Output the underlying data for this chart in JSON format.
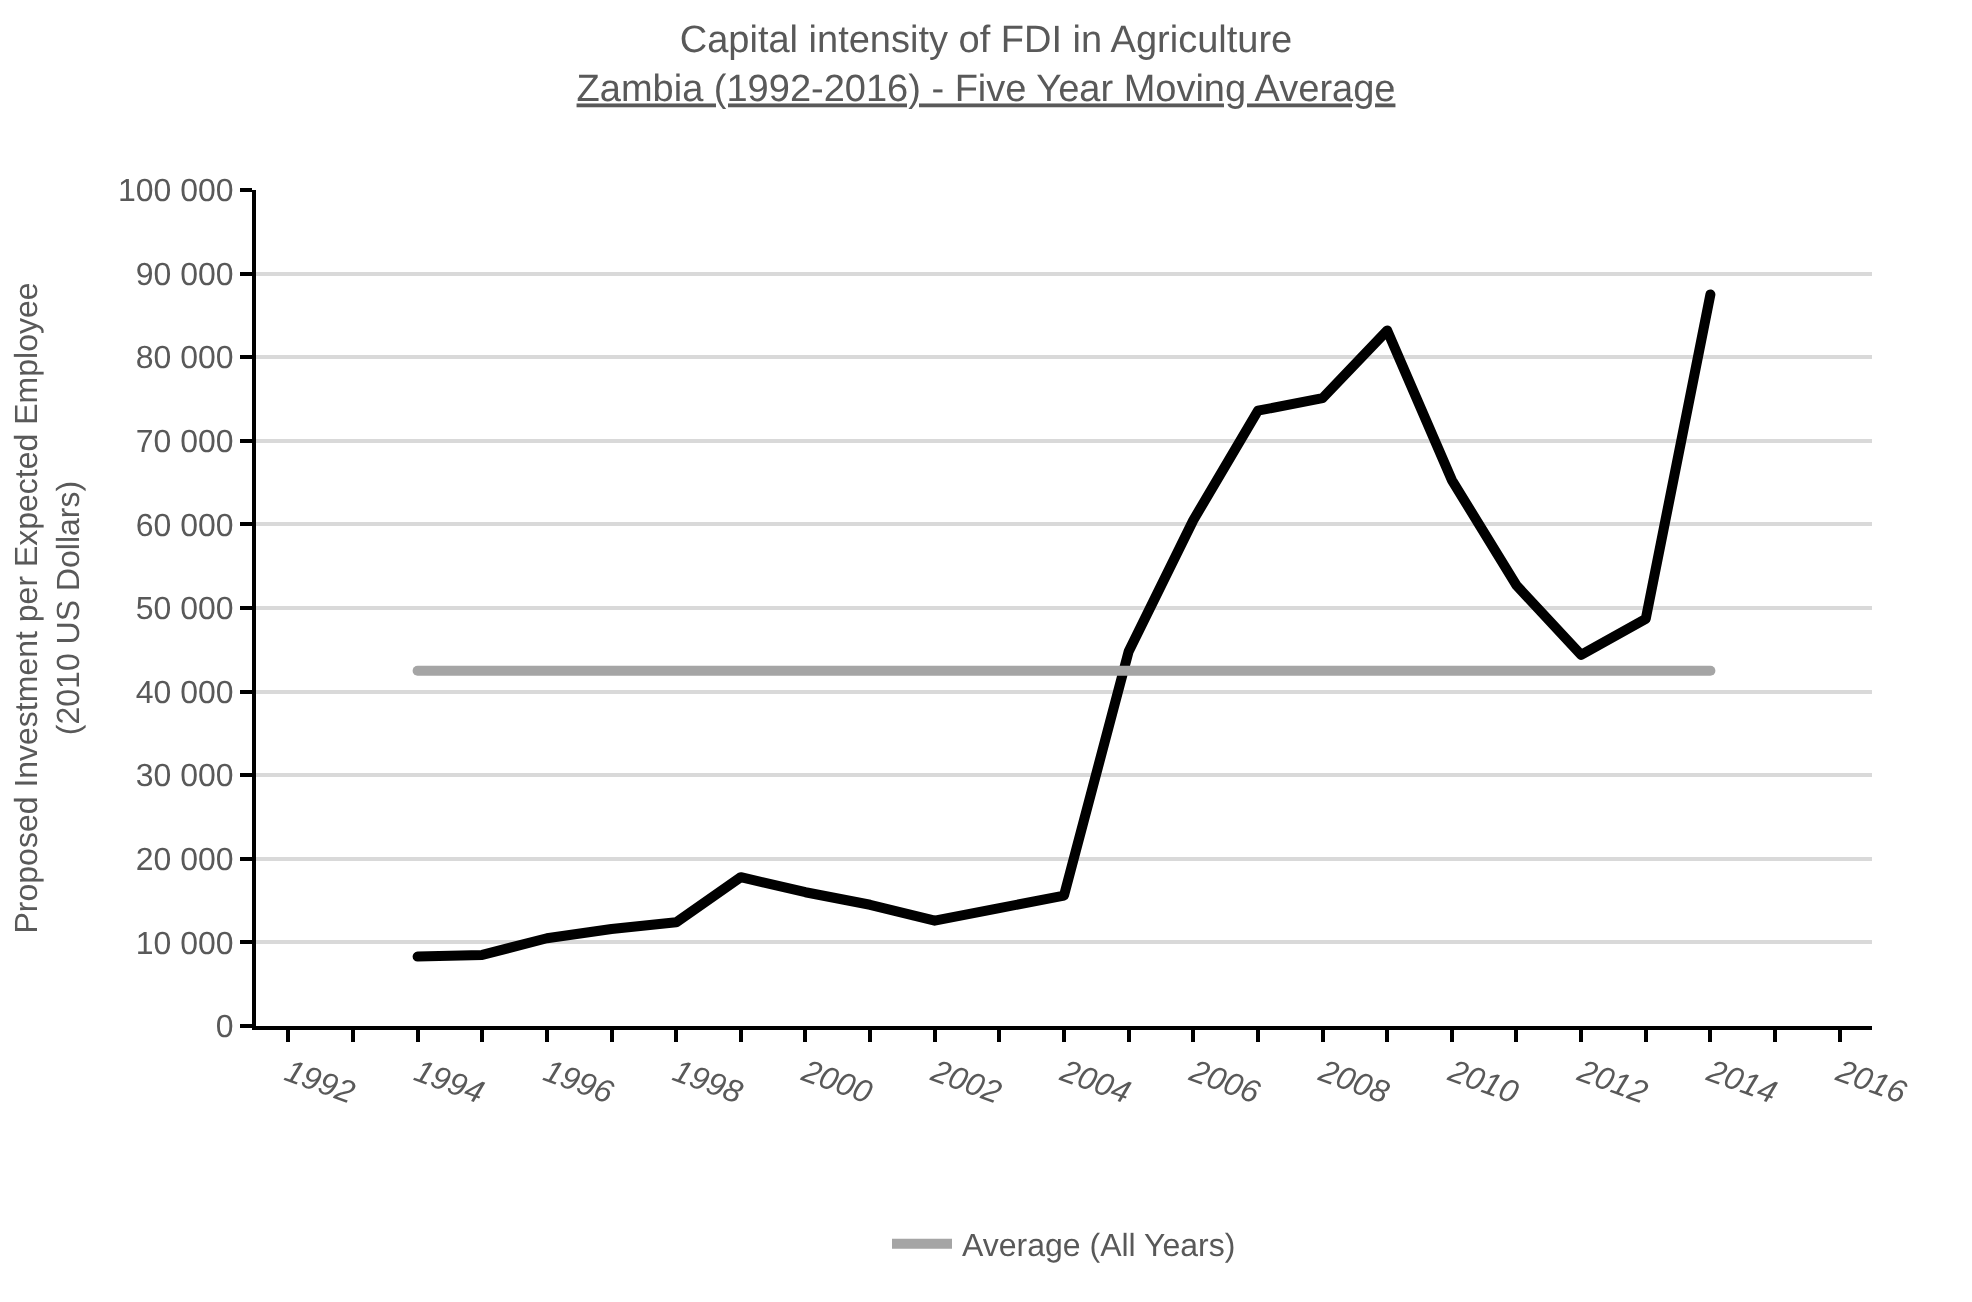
{
  "chart_data": {
    "type": "line",
    "title": "Capital intensity of FDI in Agriculture",
    "subtitle": "Zambia (1992-2016) - Five Year Moving Average",
    "ylabel": "Proposed Investment per Expected Employee\n(2010 US Dollars)",
    "x": [
      1994,
      1995,
      1996,
      1997,
      1998,
      1999,
      2000,
      2001,
      2002,
      2003,
      2004,
      2005,
      2006,
      2007,
      2008,
      2009,
      2010,
      2011,
      2012,
      2013,
      2014
    ],
    "series": [
      {
        "color": "#000000",
        "values": [
          8300,
          8500,
          10500,
          11600,
          12400,
          17800,
          16000,
          14500,
          12600,
          14100,
          15600,
          44800,
          60500,
          73600,
          75100,
          83200,
          65300,
          52700,
          44400,
          48700,
          87500
        ]
      },
      {
        "name": "Average (All Years)",
        "color": "#a5a5a5",
        "x": [
          1994,
          2014
        ],
        "values": [
          42500,
          42500
        ]
      }
    ],
    "xlim": [
      1991.5,
      2016.5
    ],
    "xticks": [
      1992,
      {
        "value": 1993,
        "label": null
      },
      1994,
      {
        "value": 1995,
        "label": null
      },
      1996,
      {
        "value": 1997,
        "label": null
      },
      1998,
      {
        "value": 1999,
        "label": null
      },
      2000,
      {
        "value": 2001,
        "label": null
      },
      2002,
      {
        "value": 2003,
        "label": null
      },
      2004,
      {
        "value": 2005,
        "label": null
      },
      2006,
      {
        "value": 2007,
        "label": null
      },
      2008,
      {
        "value": 2009,
        "label": null
      },
      2010,
      {
        "value": 2011,
        "label": null
      },
      2012,
      {
        "value": 2013,
        "label": null
      },
      2014,
      {
        "value": 2015,
        "label": null
      },
      2016
    ],
    "ylim": [
      0,
      100000
    ],
    "yticks": [
      0,
      {
        "value": 10000,
        "label": "10 000"
      },
      {
        "value": 20000,
        "label": "20 000"
      },
      {
        "value": 30000,
        "label": "30 000"
      },
      {
        "value": 40000,
        "label": "40 000"
      },
      {
        "value": 50000,
        "label": "50 000"
      },
      {
        "value": 60000,
        "label": "60 000"
      },
      {
        "value": 70000,
        "label": "70 000"
      },
      {
        "value": 80000,
        "label": "80 000"
      },
      {
        "value": 90000,
        "label": "90 000"
      },
      {
        "value": 100000,
        "label": "100 000"
      }
    ],
    "grid": "y",
    "legend": "bottom",
    "marker": "none",
    "line_style": "solid"
  }
}
